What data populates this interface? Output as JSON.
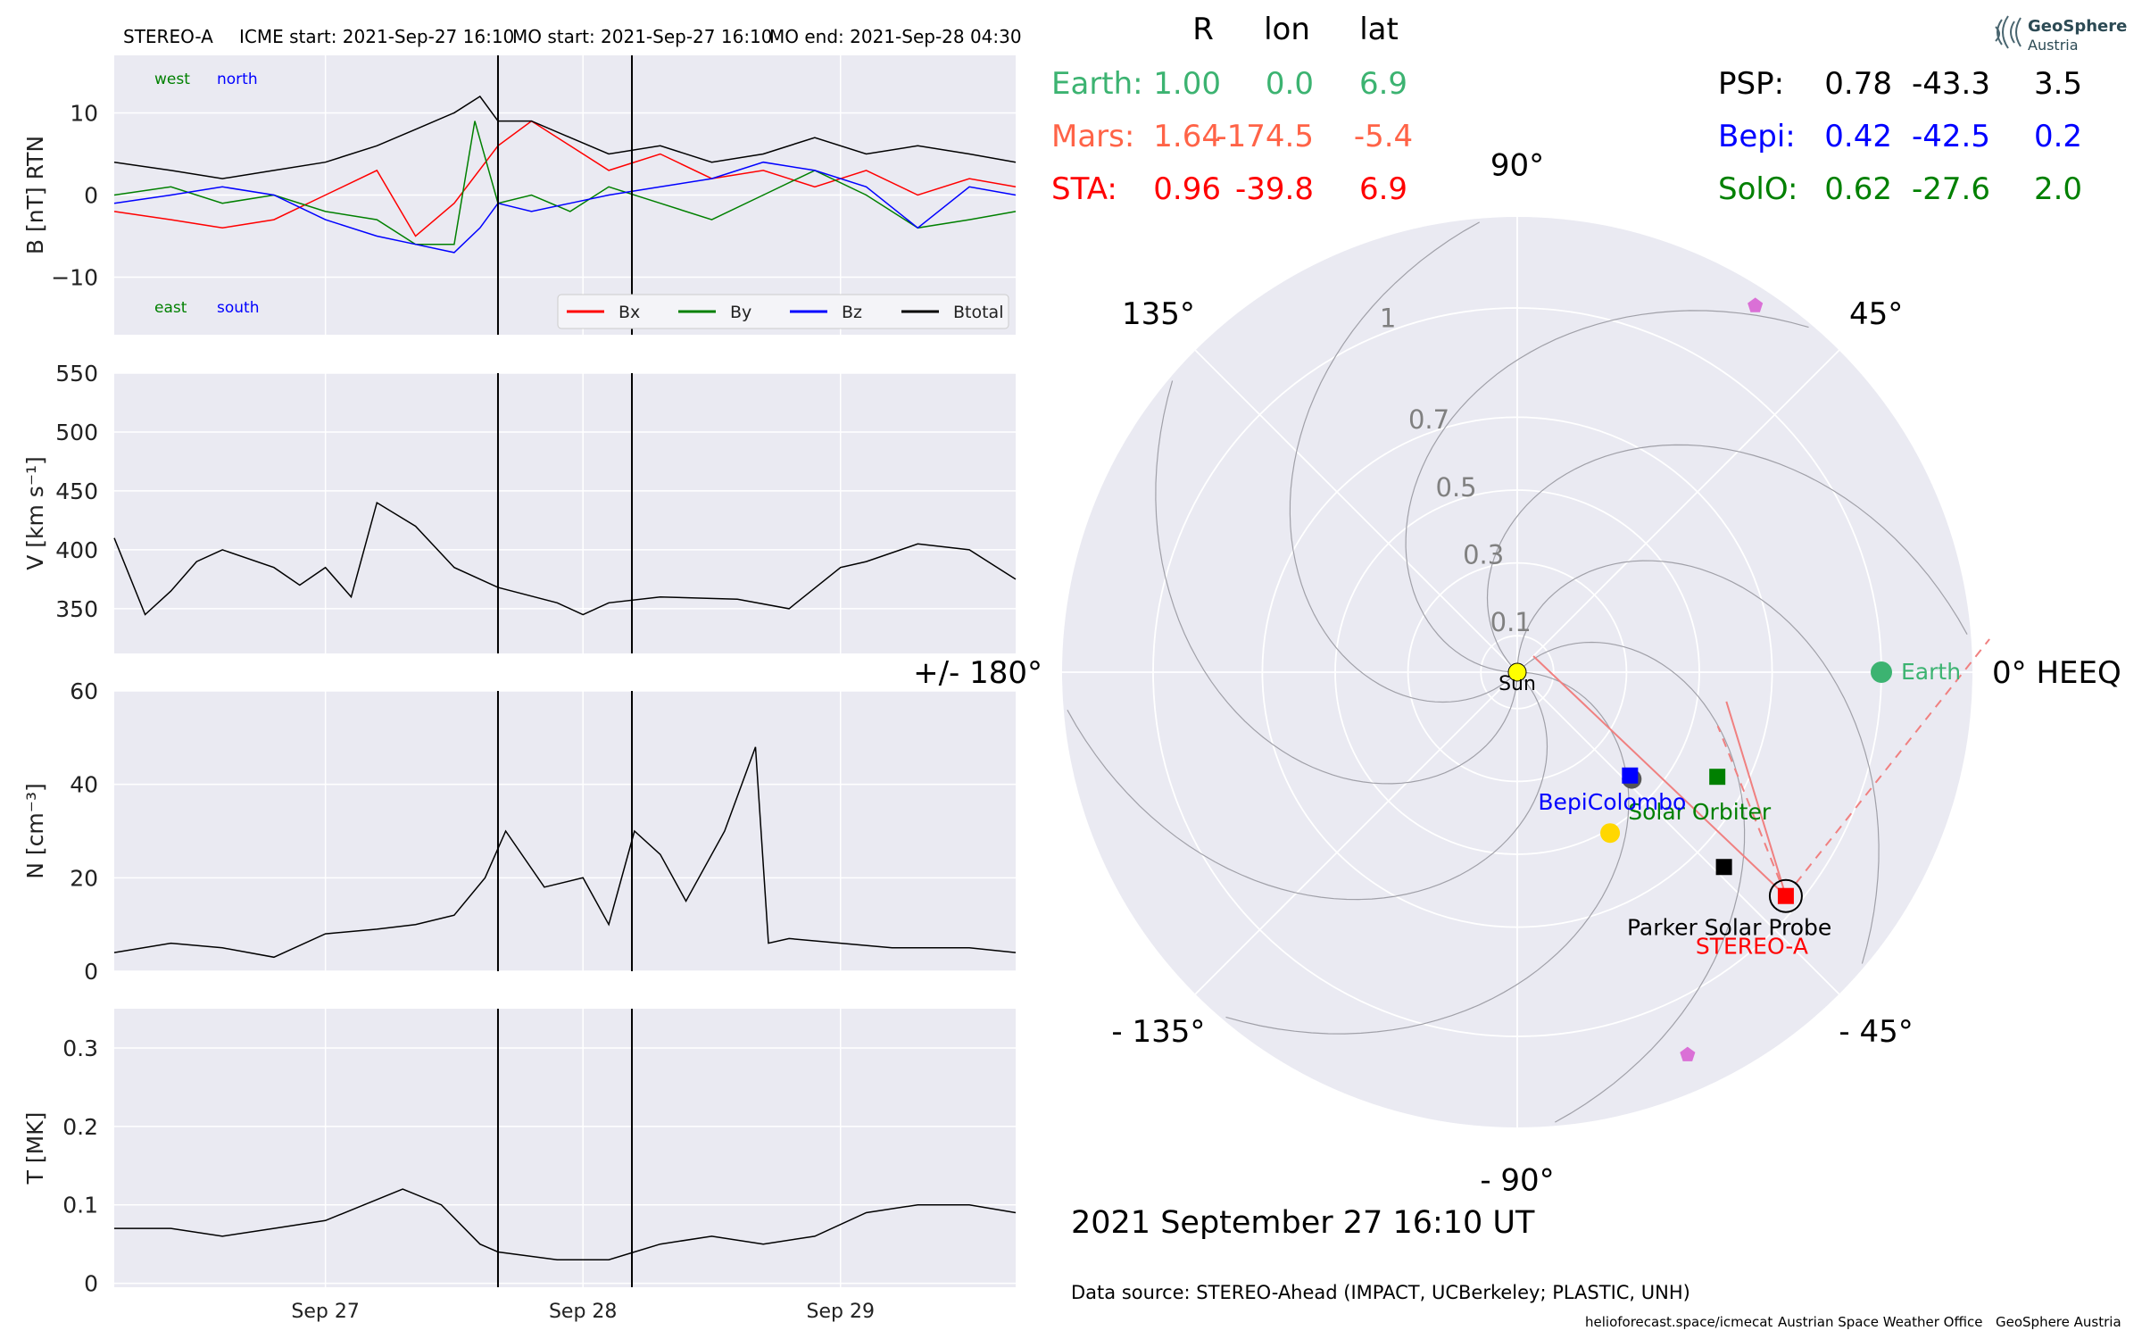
{
  "header": {
    "spacecraft": "STEREO-A",
    "icme_start": "ICME start: 2021-Sep-27 16:10",
    "mo_start": "MO start: 2021-Sep-27 16:10",
    "mo_end": "MO end: 2021-Sep-28 04:30"
  },
  "positions": {
    "col_r": "R",
    "col_lon": "lon",
    "col_lat": "lat",
    "left_rows": [
      {
        "name": "Earth:",
        "r": "1.00",
        "lon": "0.0",
        "lat": "6.9",
        "color": "#3cb371"
      },
      {
        "name": "Mars:",
        "r": "1.64",
        "lon": "-174.5",
        "lat": "-5.4",
        "color": "#ff6347"
      },
      {
        "name": "STA:",
        "r": "0.96",
        "lon": "-39.8",
        "lat": "6.9",
        "color": "#ff0000"
      }
    ],
    "right_rows": [
      {
        "name": "PSP:",
        "r": "0.78",
        "lon": "-43.3",
        "lat": "3.5",
        "color": "#000000"
      },
      {
        "name": "Bepi:",
        "r": "0.42",
        "lon": "-42.5",
        "lat": "0.2",
        "color": "#0000ff"
      },
      {
        "name": "SolO:",
        "r": "0.62",
        "lon": "-27.6",
        "lat": "2.0",
        "color": "#008000"
      }
    ]
  },
  "logo": {
    "line1": "GeoSphere",
    "line2": "Austria"
  },
  "date_text": "2021 September 27  16:10 UT",
  "source_text": "Data source: STEREO-Ahead (IMPACT, UCBerkeley; PLASTIC, UNH)",
  "footer": {
    "url": "helioforecast.space/icmecat",
    "office": "Austrian Space Weather Office",
    "org": "GeoSphere Austria"
  },
  "chart_data": [
    {
      "type": "line",
      "panel": "magnetic field",
      "ylabel": "B [nT] RTN",
      "ylim": [
        -17,
        17
      ],
      "yticks": [
        10,
        0,
        -10
      ],
      "ytick_labels": [
        "10",
        "0",
        "−10"
      ],
      "xlim": [
        -0.82,
        2.68
      ],
      "x_unit": "days since 2021-Sep-27 00:00",
      "corner_labels": {
        "top_left": "west",
        "top_right": "north",
        "bottom_left": "east",
        "bottom_right": "south"
      },
      "legend": {
        "placement": "lower right",
        "entries": [
          "Bx",
          "By",
          "Bz",
          "Btotal"
        ]
      },
      "series": [
        {
          "name": "Bx",
          "color": "#ff0000",
          "x": [
            -0.82,
            -0.6,
            -0.4,
            -0.2,
            0.0,
            0.2,
            0.35,
            0.5,
            0.67,
            0.8,
            0.95,
            1.1,
            1.3,
            1.5,
            1.7,
            1.9,
            2.1,
            2.3,
            2.5,
            2.68
          ],
          "y": [
            -2,
            -3,
            -4,
            -3,
            0,
            3,
            -5,
            -1,
            6,
            9,
            6,
            3,
            5,
            2,
            3,
            1,
            3,
            0,
            2,
            1
          ]
        },
        {
          "name": "By",
          "color": "#008000",
          "x": [
            -0.82,
            -0.6,
            -0.4,
            -0.2,
            0.0,
            0.2,
            0.35,
            0.5,
            0.58,
            0.67,
            0.8,
            0.95,
            1.1,
            1.3,
            1.5,
            1.7,
            1.9,
            2.1,
            2.3,
            2.5,
            2.68
          ],
          "y": [
            0,
            1,
            -1,
            0,
            -2,
            -3,
            -6,
            -6,
            9,
            -1,
            0,
            -2,
            1,
            -1,
            -3,
            0,
            3,
            0,
            -4,
            -3,
            -2
          ]
        },
        {
          "name": "Bz",
          "color": "#0000ff",
          "x": [
            -0.82,
            -0.6,
            -0.4,
            -0.2,
            0.0,
            0.2,
            0.35,
            0.5,
            0.6,
            0.67,
            0.8,
            0.95,
            1.1,
            1.3,
            1.5,
            1.7,
            1.9,
            2.1,
            2.3,
            2.5,
            2.68
          ],
          "y": [
            -1,
            0,
            1,
            0,
            -3,
            -5,
            -6,
            -7,
            -4,
            -1,
            -2,
            -1,
            0,
            1,
            2,
            4,
            3,
            1,
            -4,
            1,
            0
          ]
        },
        {
          "name": "Btotal",
          "color": "#000000",
          "x": [
            -0.82,
            -0.6,
            -0.4,
            -0.2,
            0.0,
            0.2,
            0.35,
            0.5,
            0.6,
            0.67,
            0.8,
            0.95,
            1.1,
            1.3,
            1.5,
            1.7,
            1.9,
            2.1,
            2.3,
            2.5,
            2.68
          ],
          "y": [
            4,
            3,
            2,
            3,
            4,
            6,
            8,
            10,
            12,
            9,
            9,
            7,
            5,
            6,
            4,
            5,
            7,
            5,
            6,
            5,
            4
          ]
        }
      ],
      "vlines": [
        0.67,
        1.19
      ]
    },
    {
      "type": "line",
      "panel": "speed",
      "ylabel": "V [km s⁻¹]",
      "ylim": [
        312,
        550
      ],
      "yticks": [
        550,
        500,
        450,
        400,
        350
      ],
      "xlim": [
        -0.82,
        2.68
      ],
      "series": [
        {
          "name": "V",
          "color": "#000000",
          "x": [
            -0.82,
            -0.7,
            -0.6,
            -0.5,
            -0.4,
            -0.2,
            -0.1,
            0.0,
            0.1,
            0.2,
            0.35,
            0.5,
            0.67,
            0.9,
            1.0,
            1.1,
            1.3,
            1.6,
            1.8,
            2.0,
            2.1,
            2.3,
            2.5,
            2.68
          ],
          "y": [
            410,
            345,
            365,
            390,
            400,
            385,
            370,
            385,
            360,
            440,
            420,
            385,
            368,
            355,
            345,
            355,
            360,
            358,
            350,
            385,
            390,
            405,
            400,
            375
          ]
        }
      ],
      "vlines": [
        0.67,
        1.19
      ]
    },
    {
      "type": "line",
      "panel": "density",
      "ylabel": "N [cm⁻³]",
      "ylim": [
        0,
        60
      ],
      "yticks": [
        60,
        40,
        20,
        0
      ],
      "xlim": [
        -0.82,
        2.68
      ],
      "series": [
        {
          "name": "N",
          "color": "#000000",
          "x": [
            -0.82,
            -0.6,
            -0.4,
            -0.2,
            0.0,
            0.2,
            0.35,
            0.5,
            0.62,
            0.7,
            0.85,
            1.0,
            1.1,
            1.2,
            1.3,
            1.4,
            1.55,
            1.67,
            1.72,
            1.8,
            2.0,
            2.2,
            2.5,
            2.68
          ],
          "y": [
            4,
            6,
            5,
            3,
            8,
            9,
            10,
            12,
            20,
            30,
            18,
            20,
            10,
            30,
            25,
            15,
            30,
            48,
            6,
            7,
            6,
            5,
            5,
            4
          ]
        }
      ],
      "vlines": [
        0.67,
        1.19
      ]
    },
    {
      "type": "line",
      "panel": "temperature",
      "ylabel": "T [MK]",
      "ylim": [
        -0.005,
        0.35
      ],
      "yticks": [
        0.3,
        0.2,
        0.1,
        0.0
      ],
      "xlim": [
        -0.82,
        2.68
      ],
      "xticks": [
        0,
        1,
        2
      ],
      "xtick_labels": [
        "Sep 27",
        "Sep 28",
        "Sep 29"
      ],
      "series": [
        {
          "name": "T",
          "color": "#000000",
          "x": [
            -0.82,
            -0.6,
            -0.4,
            -0.2,
            0.0,
            0.15,
            0.3,
            0.45,
            0.6,
            0.67,
            0.9,
            1.1,
            1.3,
            1.5,
            1.7,
            1.9,
            2.1,
            2.3,
            2.5,
            2.68
          ],
          "y": [
            0.07,
            0.07,
            0.06,
            0.07,
            0.08,
            0.1,
            0.12,
            0.1,
            0.05,
            0.04,
            0.03,
            0.03,
            0.05,
            0.06,
            0.05,
            0.06,
            0.09,
            0.1,
            0.1,
            0.09
          ]
        }
      ],
      "vlines": [
        0.67,
        1.19
      ]
    },
    {
      "type": "polar",
      "panel": "spacecraft positions, HEEQ longitude",
      "angle_labels": [
        "90°",
        "45°",
        "0° HEEQ",
        "- 45°",
        "- 90°",
        "- 135°",
        "+/- 180°",
        "135°"
      ],
      "angle_values": [
        90,
        45,
        0,
        -45,
        -90,
        -135,
        180,
        135
      ],
      "r_ticks": [
        0.1,
        0.3,
        0.5,
        0.7,
        1.0
      ],
      "r_max": 1.25,
      "bodies": [
        {
          "name": "Sun",
          "r": 0.0,
          "lon": 0.0,
          "marker": "circle",
          "color": "#ffff00"
        },
        {
          "name": "Earth",
          "r": 1.0,
          "lon": 0.0,
          "marker": "circle",
          "color": "#3cb371"
        },
        {
          "name": "STEREO-A",
          "r": 0.96,
          "lon": -39.8,
          "marker": "square",
          "color": "#ff0000"
        },
        {
          "name": "Solar Orbiter",
          "r": 0.62,
          "lon": -27.6,
          "marker": "square",
          "color": "#008000"
        },
        {
          "name": "BepiColombo",
          "r": 0.42,
          "lon": -42.5,
          "marker": "square",
          "color": "#0000ff"
        },
        {
          "name": "Parker Solar Probe",
          "r": 0.78,
          "lon": -43.3,
          "marker": "square",
          "color": "#000000"
        }
      ],
      "extra_markers": [
        {
          "r": 0.43,
          "lon": -43.0,
          "marker": "circle",
          "color": "#555555"
        },
        {
          "r": 0.51,
          "lon": -60.0,
          "marker": "circle",
          "color": "#ffd700"
        },
        {
          "r": 1.2,
          "lon": 57.0,
          "marker": "pentagon",
          "color": "#da70d6"
        },
        {
          "r": 1.15,
          "lon": -66.0,
          "marker": "pentagon",
          "color": "#da70d6"
        }
      ]
    }
  ]
}
